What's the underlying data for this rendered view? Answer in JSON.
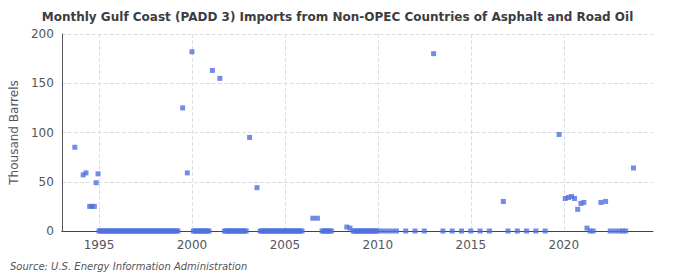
{
  "chart_data": {
    "type": "scatter",
    "title": "Monthly Gulf Coast (PADD 3) Imports from Non-OPEC Countries of Asphalt and Road Oil",
    "ylabel": "Thousand Barrels",
    "annotations": [
      "Source: U.S. Energy Information Administration"
    ],
    "marker": "square",
    "grid": true,
    "xlim": [
      1993.0,
      2024.8
    ],
    "xticks": [
      1995,
      2000,
      2005,
      2010,
      2015,
      2020
    ],
    "ylim": [
      0,
      200
    ],
    "yticks": [
      0,
      50,
      100,
      150,
      200
    ],
    "x": [
      1993.7,
      1994.15,
      1994.3,
      1994.5,
      1994.6,
      1994.75,
      1994.85,
      1994.95,
      1995.0,
      1995.08,
      1995.17,
      1995.25,
      1995.33,
      1995.42,
      1995.5,
      1995.58,
      1995.67,
      1995.75,
      1995.83,
      1995.92,
      1996.0,
      1996.08,
      1996.17,
      1996.25,
      1996.33,
      1996.42,
      1996.5,
      1996.58,
      1996.67,
      1996.75,
      1996.83,
      1996.92,
      1997.0,
      1997.08,
      1997.17,
      1997.25,
      1997.33,
      1997.42,
      1997.5,
      1997.58,
      1997.67,
      1997.75,
      1997.83,
      1997.92,
      1998.0,
      1998.08,
      1998.17,
      1998.25,
      1998.33,
      1998.42,
      1998.5,
      1998.58,
      1998.67,
      1998.75,
      1998.83,
      1998.92,
      1999.0,
      1999.08,
      1999.17,
      1999.25,
      1999.5,
      1999.75,
      2000.0,
      2000.08,
      2000.17,
      2000.25,
      2000.33,
      2000.42,
      2000.5,
      2000.58,
      2000.67,
      2000.75,
      2000.83,
      2000.92,
      2001.1,
      2001.5,
      2001.75,
      2001.83,
      2001.92,
      2002.0,
      2002.08,
      2002.17,
      2002.25,
      2002.33,
      2002.42,
      2002.5,
      2002.58,
      2002.67,
      2002.75,
      2002.83,
      2002.92,
      2003.1,
      2003.5,
      2003.67,
      2003.75,
      2003.83,
      2003.92,
      2004.0,
      2004.08,
      2004.17,
      2004.25,
      2004.33,
      2004.42,
      2004.5,
      2004.58,
      2004.67,
      2004.75,
      2004.83,
      2004.92,
      2005.0,
      2005.08,
      2005.17,
      2005.25,
      2005.33,
      2005.42,
      2005.5,
      2005.58,
      2005.67,
      2005.75,
      2005.83,
      2005.92,
      2006.5,
      2006.75,
      2007.0,
      2007.08,
      2007.17,
      2007.25,
      2007.33,
      2007.42,
      2007.5,
      2008.33,
      2008.5,
      2008.67,
      2008.75,
      2008.83,
      2008.92,
      2009.0,
      2009.08,
      2009.17,
      2009.25,
      2009.33,
      2009.42,
      2009.5,
      2009.58,
      2009.67,
      2009.75,
      2009.83,
      2009.92,
      2010.0,
      2010.25,
      2010.5,
      2010.75,
      2011.0,
      2011.5,
      2012.0,
      2012.5,
      2013.0,
      2013.5,
      2014.0,
      2014.5,
      2015.0,
      2015.5,
      2016.0,
      2016.75,
      2017.0,
      2017.5,
      2018.0,
      2018.5,
      2019.0,
      2019.75,
      2020.08,
      2020.25,
      2020.42,
      2020.58,
      2020.75,
      2020.92,
      2021.08,
      2021.25,
      2021.42,
      2021.58,
      2022.0,
      2022.25,
      2022.5,
      2022.75,
      2023.0,
      2023.17,
      2023.33,
      2023.75
    ],
    "values": [
      85,
      57,
      59,
      25,
      25,
      25,
      49,
      58,
      0,
      0,
      0,
      0,
      0,
      0,
      0,
      0,
      0,
      0,
      0,
      0,
      0,
      0,
      0,
      0,
      0,
      0,
      0,
      0,
      0,
      0,
      0,
      0,
      0,
      0,
      0,
      0,
      0,
      0,
      0,
      0,
      0,
      0,
      0,
      0,
      0,
      0,
      0,
      0,
      0,
      0,
      0,
      0,
      0,
      0,
      0,
      0,
      0,
      0,
      0,
      0,
      125,
      59,
      182,
      0,
      0,
      0,
      0,
      0,
      0,
      0,
      0,
      0,
      0,
      0,
      163,
      155,
      0,
      0,
      0,
      0,
      0,
      0,
      0,
      0,
      0,
      0,
      0,
      0,
      0,
      0,
      0,
      95,
      44,
      0,
      0,
      0,
      0,
      0,
      0,
      0,
      0,
      0,
      0,
      0,
      0,
      0,
      0,
      0,
      0,
      0,
      0,
      0,
      0,
      0,
      0,
      0,
      0,
      0,
      0,
      0,
      0,
      13,
      13,
      0,
      0,
      0,
      0,
      0,
      0,
      0,
      4,
      3,
      0,
      0,
      0,
      0,
      0,
      0,
      0,
      0,
      0,
      0,
      0,
      0,
      0,
      0,
      0,
      0,
      0,
      0,
      0,
      0,
      0,
      0,
      0,
      0,
      180,
      0,
      0,
      0,
      0,
      0,
      0,
      30,
      0,
      0,
      0,
      0,
      0,
      98,
      33,
      34,
      35,
      33,
      22,
      28,
      29,
      3,
      0,
      0,
      29,
      30,
      0,
      0,
      0,
      0,
      0,
      64
    ]
  }
}
